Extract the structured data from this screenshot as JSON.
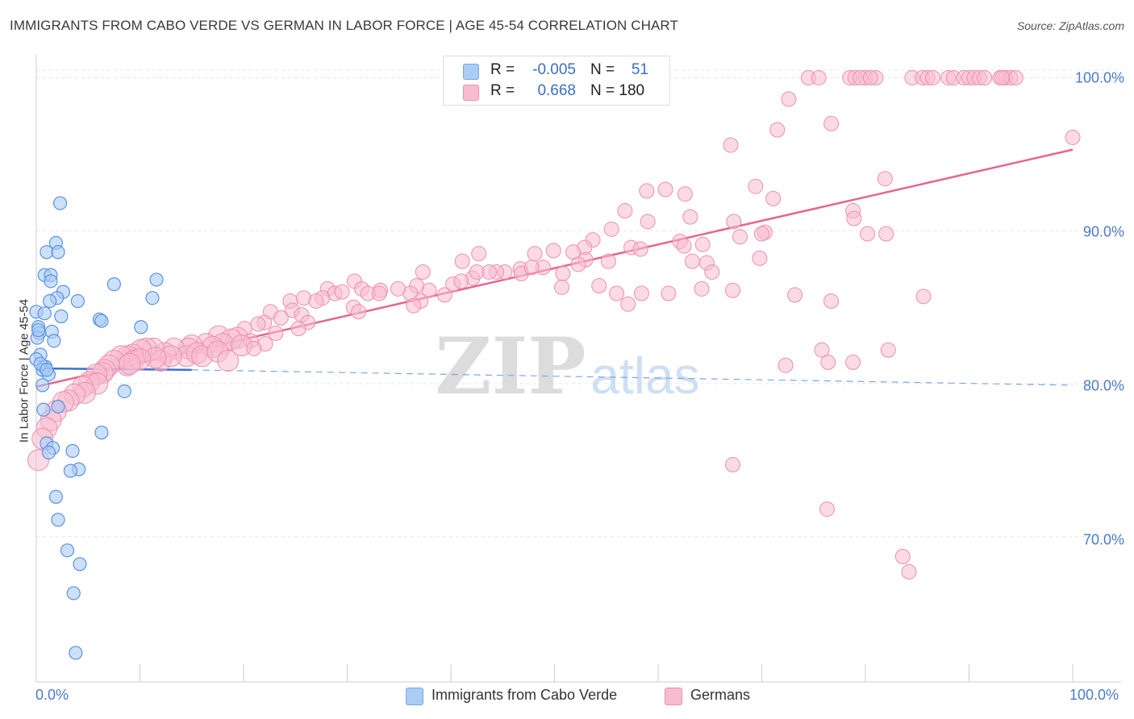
{
  "header": {
    "title": "IMMIGRANTS FROM CABO VERDE VS GERMAN IN LABOR FORCE | AGE 45-54 CORRELATION CHART",
    "source": "Source: ZipAtlas.com"
  },
  "watermark": {
    "zip": "ZIP",
    "atlas": "atlas"
  },
  "legend": {
    "rows": [
      {
        "r_label": "R =",
        "r_value": "-0.005",
        "n_label": "N =",
        "n_value": "51",
        "color": "#aaccf5"
      },
      {
        "r_label": "R =",
        "r_value": "0.668",
        "n_label": "N = 180",
        "n_value": "",
        "color": "#f7bcd0"
      }
    ]
  },
  "bottom_legend": {
    "items": [
      {
        "label": "Immigrants from Cabo Verde",
        "color": "#aaccf5"
      },
      {
        "label": "Germans",
        "color": "#f7bcd0"
      }
    ]
  },
  "chart_data": {
    "type": "scatter",
    "title": "IMMIGRANTS FROM CABO VERDE VS GERMAN IN LABOR FORCE | AGE 45-54 CORRELATION CHART",
    "xlabel": "",
    "ylabel": "In Labor Force | Age 45-54",
    "xlim": [
      0,
      100
    ],
    "ylim": [
      60.5,
      101.5
    ],
    "x_tick_labels": [
      "0.0%",
      "100.0%"
    ],
    "y_ticks": [
      70,
      80,
      90,
      100
    ],
    "y_tick_labels": [
      "70.0%",
      "80.0%",
      "90.0%",
      "100.0%"
    ],
    "grid": true,
    "series": [
      {
        "name": "Immigrants from Cabo Verde",
        "color": "#5b93de",
        "fill": "#aaccf5",
        "r": -0.005,
        "n": 51,
        "trend": {
          "x0": 0,
          "y0": 81.0,
          "x1": 15,
          "y1": 80.9,
          "x_dash_end": 100,
          "y_dash_end": 79.9
        },
        "points": [
          [
            2.3,
            91.8
          ],
          [
            1.9,
            89.2
          ],
          [
            1.0,
            88.6
          ],
          [
            2.1,
            88.6
          ],
          [
            0.8,
            87.1
          ],
          [
            1.4,
            87.1
          ],
          [
            1.4,
            86.7
          ],
          [
            7.5,
            86.5
          ],
          [
            11.6,
            86.8
          ],
          [
            2.6,
            86.0
          ],
          [
            2.0,
            85.6
          ],
          [
            1.3,
            85.4
          ],
          [
            4.0,
            85.4
          ],
          [
            11.2,
            85.6
          ],
          [
            0.0,
            84.7
          ],
          [
            0.8,
            84.6
          ],
          [
            2.4,
            84.4
          ],
          [
            6.1,
            84.2
          ],
          [
            6.3,
            84.1
          ],
          [
            10.1,
            83.7
          ],
          [
            0.2,
            83.7
          ],
          [
            1.5,
            83.4
          ],
          [
            0.3,
            83.3
          ],
          [
            0.1,
            83.0
          ],
          [
            1.7,
            82.8
          ],
          [
            0.4,
            81.9
          ],
          [
            0.0,
            81.6
          ],
          [
            0.7,
            81.1
          ],
          [
            0.9,
            81.1
          ],
          [
            0.6,
            80.9
          ],
          [
            1.2,
            80.6
          ],
          [
            0.6,
            79.9
          ],
          [
            8.5,
            79.5
          ],
          [
            2.1,
            78.5
          ],
          [
            0.7,
            78.3
          ],
          [
            6.3,
            76.8
          ],
          [
            1.0,
            76.1
          ],
          [
            1.6,
            75.8
          ],
          [
            1.2,
            75.5
          ],
          [
            3.5,
            75.6
          ],
          [
            4.1,
            74.4
          ],
          [
            3.3,
            74.3
          ],
          [
            1.9,
            72.6
          ],
          [
            2.1,
            71.1
          ],
          [
            3.0,
            69.1
          ],
          [
            4.2,
            68.2
          ],
          [
            3.6,
            66.3
          ],
          [
            3.8,
            62.4
          ],
          [
            0.4,
            81.3
          ],
          [
            1.0,
            80.9
          ],
          [
            0.2,
            83.5
          ]
        ]
      },
      {
        "name": "Germans",
        "color": "#e8648f",
        "fill": "#f7bcd0",
        "r": 0.668,
        "n": 180,
        "trend": {
          "x0": 0,
          "y0": 79.8,
          "x1": 100,
          "y1": 95.3
        },
        "points": [
          [
            74.5,
            100.0
          ],
          [
            75.5,
            100.0
          ],
          [
            78.5,
            100.0
          ],
          [
            79.0,
            100.0
          ],
          [
            80.0,
            100.0
          ],
          [
            81.0,
            100.0
          ],
          [
            79.5,
            100.0
          ],
          [
            80.5,
            100.0
          ],
          [
            84.5,
            100.0
          ],
          [
            85.5,
            100.0
          ],
          [
            86.0,
            100.0
          ],
          [
            86.5,
            100.0
          ],
          [
            88.0,
            100.0
          ],
          [
            88.5,
            100.0
          ],
          [
            89.5,
            100.0
          ],
          [
            90.0,
            100.0
          ],
          [
            90.5,
            100.0
          ],
          [
            91.0,
            100.0
          ],
          [
            93.0,
            100.0
          ],
          [
            93.5,
            100.0
          ],
          [
            94.0,
            100.0
          ],
          [
            91.5,
            100.0
          ],
          [
            94.5,
            100.0
          ],
          [
            72.6,
            98.6
          ],
          [
            93.2,
            100.0
          ],
          [
            71.5,
            96.6
          ],
          [
            76.7,
            97.0
          ],
          [
            67.0,
            95.6
          ],
          [
            100.0,
            96.1
          ],
          [
            81.9,
            93.4
          ],
          [
            69.4,
            92.9
          ],
          [
            60.7,
            92.7
          ],
          [
            62.6,
            92.4
          ],
          [
            58.9,
            92.6
          ],
          [
            71.1,
            92.1
          ],
          [
            56.8,
            91.3
          ],
          [
            63.1,
            90.9
          ],
          [
            67.3,
            90.6
          ],
          [
            59.0,
            90.6
          ],
          [
            78.8,
            91.3
          ],
          [
            78.9,
            90.8
          ],
          [
            55.5,
            90.1
          ],
          [
            80.2,
            89.8
          ],
          [
            82.0,
            89.8
          ],
          [
            70.3,
            89.9
          ],
          [
            70.0,
            89.8
          ],
          [
            67.9,
            89.6
          ],
          [
            53.7,
            89.4
          ],
          [
            52.9,
            88.9
          ],
          [
            57.4,
            88.9
          ],
          [
            62.1,
            89.3
          ],
          [
            64.3,
            89.1
          ],
          [
            62.5,
            89.0
          ],
          [
            58.3,
            88.8
          ],
          [
            51.8,
            88.6
          ],
          [
            49.9,
            88.7
          ],
          [
            48.1,
            88.5
          ],
          [
            53.0,
            88.1
          ],
          [
            55.2,
            88.0
          ],
          [
            69.8,
            88.2
          ],
          [
            63.3,
            88.0
          ],
          [
            64.7,
            87.9
          ],
          [
            42.7,
            88.5
          ],
          [
            52.3,
            87.8
          ],
          [
            41.1,
            88.0
          ],
          [
            37.3,
            87.3
          ],
          [
            48.9,
            87.6
          ],
          [
            50.8,
            87.2
          ],
          [
            46.7,
            87.5
          ],
          [
            46.8,
            87.2
          ],
          [
            45.2,
            87.3
          ],
          [
            47.8,
            87.6
          ],
          [
            44.4,
            87.3
          ],
          [
            42.1,
            86.9
          ],
          [
            43.7,
            87.3
          ],
          [
            42.5,
            87.3
          ],
          [
            40.2,
            86.5
          ],
          [
            65.2,
            87.3
          ],
          [
            37.9,
            86.1
          ],
          [
            36.7,
            86.4
          ],
          [
            36.1,
            85.9
          ],
          [
            34.9,
            86.2
          ],
          [
            33.2,
            86.1
          ],
          [
            30.7,
            86.7
          ],
          [
            31.4,
            86.2
          ],
          [
            28.1,
            86.2
          ],
          [
            28.8,
            85.9
          ],
          [
            25.8,
            85.6
          ],
          [
            27.6,
            85.6
          ],
          [
            29.5,
            86.0
          ],
          [
            32.0,
            85.9
          ],
          [
            33.1,
            85.9
          ],
          [
            39.4,
            85.8
          ],
          [
            41.0,
            86.7
          ],
          [
            50.7,
            86.3
          ],
          [
            54.3,
            86.4
          ],
          [
            56.0,
            85.9
          ],
          [
            58.4,
            85.9
          ],
          [
            61.0,
            85.9
          ],
          [
            64.2,
            86.2
          ],
          [
            67.2,
            86.1
          ],
          [
            57.1,
            85.2
          ],
          [
            73.2,
            85.8
          ],
          [
            76.7,
            85.4
          ],
          [
            85.6,
            85.7
          ],
          [
            37.1,
            85.4
          ],
          [
            36.4,
            85.1
          ],
          [
            30.6,
            85.0
          ],
          [
            31.1,
            84.7
          ],
          [
            27.0,
            85.4
          ],
          [
            24.5,
            85.4
          ],
          [
            24.7,
            84.8
          ],
          [
            25.6,
            84.5
          ],
          [
            22.6,
            84.7
          ],
          [
            23.6,
            84.3
          ],
          [
            26.2,
            84.0
          ],
          [
            22.0,
            84.0
          ],
          [
            21.4,
            83.9
          ],
          [
            25.3,
            83.6
          ],
          [
            20.1,
            83.6
          ],
          [
            23.1,
            83.3
          ],
          [
            19.4,
            83.0
          ],
          [
            17.6,
            83.1
          ],
          [
            18.8,
            82.9
          ],
          [
            20.7,
            82.8
          ],
          [
            22.1,
            82.6
          ],
          [
            18.0,
            82.6
          ],
          [
            16.4,
            82.6
          ],
          [
            17.0,
            82.4
          ],
          [
            15.0,
            82.5
          ],
          [
            14.7,
            82.3
          ],
          [
            13.3,
            82.3
          ],
          [
            12.4,
            82.0
          ],
          [
            11.3,
            82.3
          ],
          [
            10.6,
            82.3
          ],
          [
            10.1,
            82.2
          ],
          [
            9.3,
            81.9
          ],
          [
            8.8,
            81.8
          ],
          [
            8.2,
            81.8
          ],
          [
            9.4,
            81.5
          ],
          [
            8.8,
            81.2
          ],
          [
            7.5,
            81.5
          ],
          [
            7.0,
            81.2
          ],
          [
            6.6,
            80.9
          ],
          [
            6.4,
            80.7
          ],
          [
            5.8,
            80.6
          ],
          [
            5.1,
            80.1
          ],
          [
            5.9,
            80.0
          ],
          [
            4.5,
            79.8
          ],
          [
            4.7,
            79.4
          ],
          [
            3.7,
            79.3
          ],
          [
            3.1,
            78.9
          ],
          [
            2.6,
            78.8
          ],
          [
            1.9,
            78.2
          ],
          [
            1.4,
            77.6
          ],
          [
            1.0,
            77.1
          ],
          [
            0.6,
            76.4
          ],
          [
            0.2,
            75.0
          ],
          [
            14.5,
            81.8
          ],
          [
            15.5,
            82.0
          ],
          [
            16.0,
            81.8
          ],
          [
            17.5,
            82.1
          ],
          [
            18.5,
            81.5
          ],
          [
            19.8,
            82.5
          ],
          [
            21.0,
            82.3
          ],
          [
            12.0,
            81.5
          ],
          [
            13.0,
            81.8
          ],
          [
            11.5,
            81.7
          ],
          [
            10.0,
            81.6
          ],
          [
            9.0,
            81.3
          ],
          [
            72.3,
            81.2
          ],
          [
            75.8,
            82.2
          ],
          [
            76.4,
            81.4
          ],
          [
            78.8,
            81.4
          ],
          [
            82.2,
            82.2
          ],
          [
            67.2,
            74.7
          ],
          [
            76.3,
            71.8
          ],
          [
            83.6,
            68.7
          ],
          [
            84.2,
            67.7
          ]
        ]
      }
    ]
  }
}
